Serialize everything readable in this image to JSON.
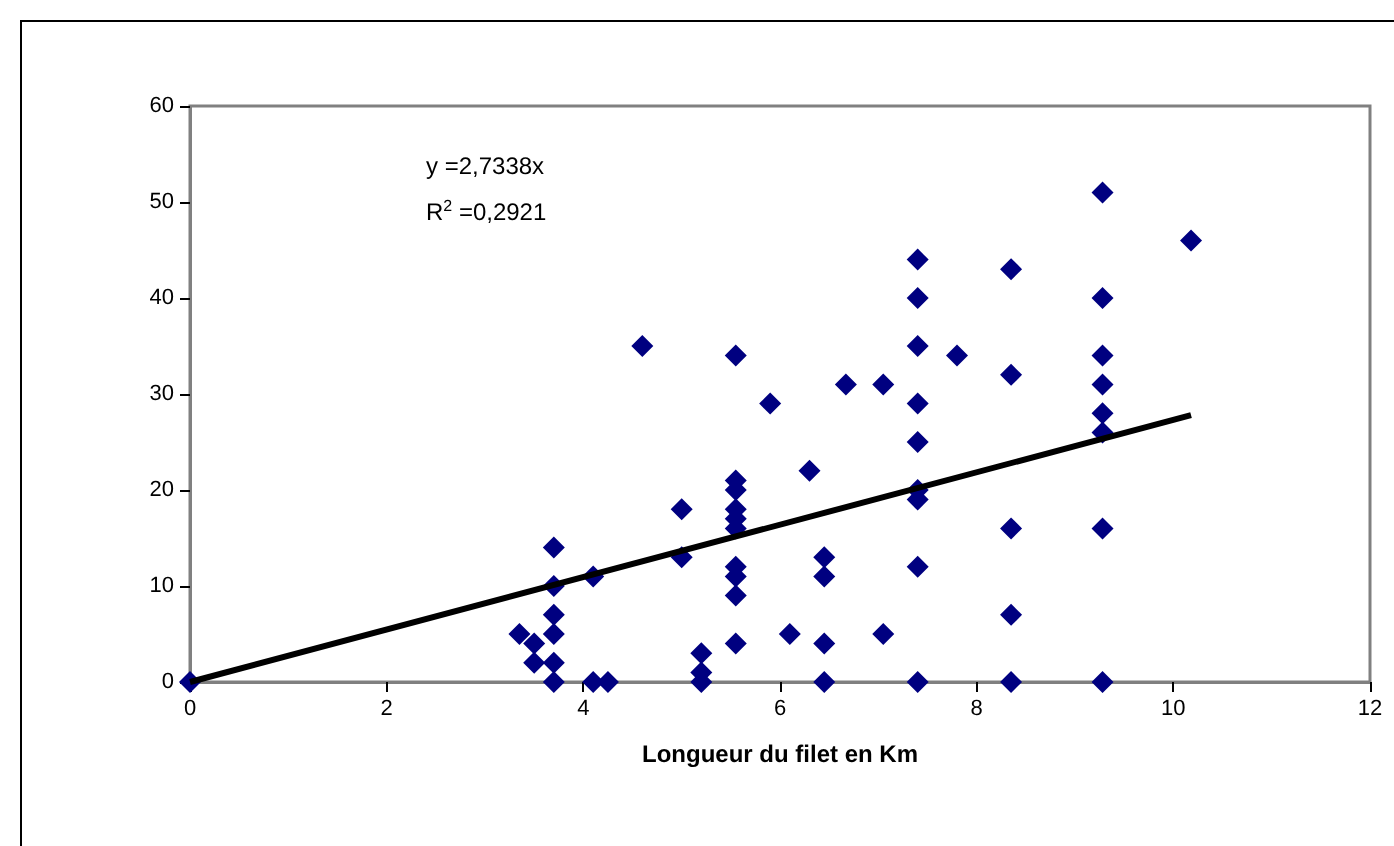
{
  "chart_data": {
    "type": "scatter",
    "xlabel": "Longueur du filet en Km",
    "xlim": [
      0,
      12
    ],
    "xticks": [
      0,
      2,
      4,
      6,
      8,
      10,
      12
    ],
    "ylim": [
      0,
      60
    ],
    "yticks": [
      0,
      10,
      20,
      30,
      40,
      50,
      60
    ],
    "grid": false,
    "marker": "diamond",
    "annotations": [
      "y =2,7338x",
      "R$^{2}$ =0,2921"
    ],
    "series": [
      {
        "color": "#000080",
        "x": [
          0,
          3.35,
          3.5,
          3.5,
          3.7,
          3.7,
          3.7,
          3.7,
          3.7,
          3.7,
          4.1,
          4.1,
          4.25,
          4.6,
          5.0,
          5.0,
          5.2,
          5.2,
          5.2,
          5.55,
          5.55,
          5.55,
          5.55,
          5.55,
          5.55,
          5.55,
          5.55,
          5.55,
          5.55,
          5.9,
          6.1,
          6.3,
          6.45,
          6.45,
          6.45,
          6.45,
          6.67,
          7.05,
          7.05,
          7.4,
          7.4,
          7.4,
          7.4,
          7.4,
          7.4,
          7.4,
          7.4,
          7.4,
          7.8,
          8.35,
          8.35,
          8.35,
          8.35,
          8.35,
          9.28,
          9.28,
          9.28,
          9.28,
          9.28,
          9.28,
          9.28,
          9.28,
          10.18
        ],
        "values": [
          0,
          5,
          4,
          2,
          14,
          10,
          7,
          5,
          2,
          0,
          11,
          0,
          0,
          35,
          18,
          13,
          3,
          1,
          0,
          34,
          21,
          20,
          18,
          17,
          16,
          12,
          11,
          9,
          4,
          29,
          5,
          22,
          13,
          11,
          4,
          0,
          31,
          31,
          5,
          44,
          40,
          35,
          29,
          25,
          20,
          19,
          12,
          0,
          34,
          43,
          32,
          16,
          7,
          0,
          51,
          40,
          34,
          31,
          28,
          26,
          16,
          0,
          46
        ]
      },
      {
        "type": "line",
        "color": "#000000",
        "marker": "none",
        "x": [
          0,
          10.18
        ],
        "values": [
          0,
          27.8
        ]
      }
    ]
  }
}
